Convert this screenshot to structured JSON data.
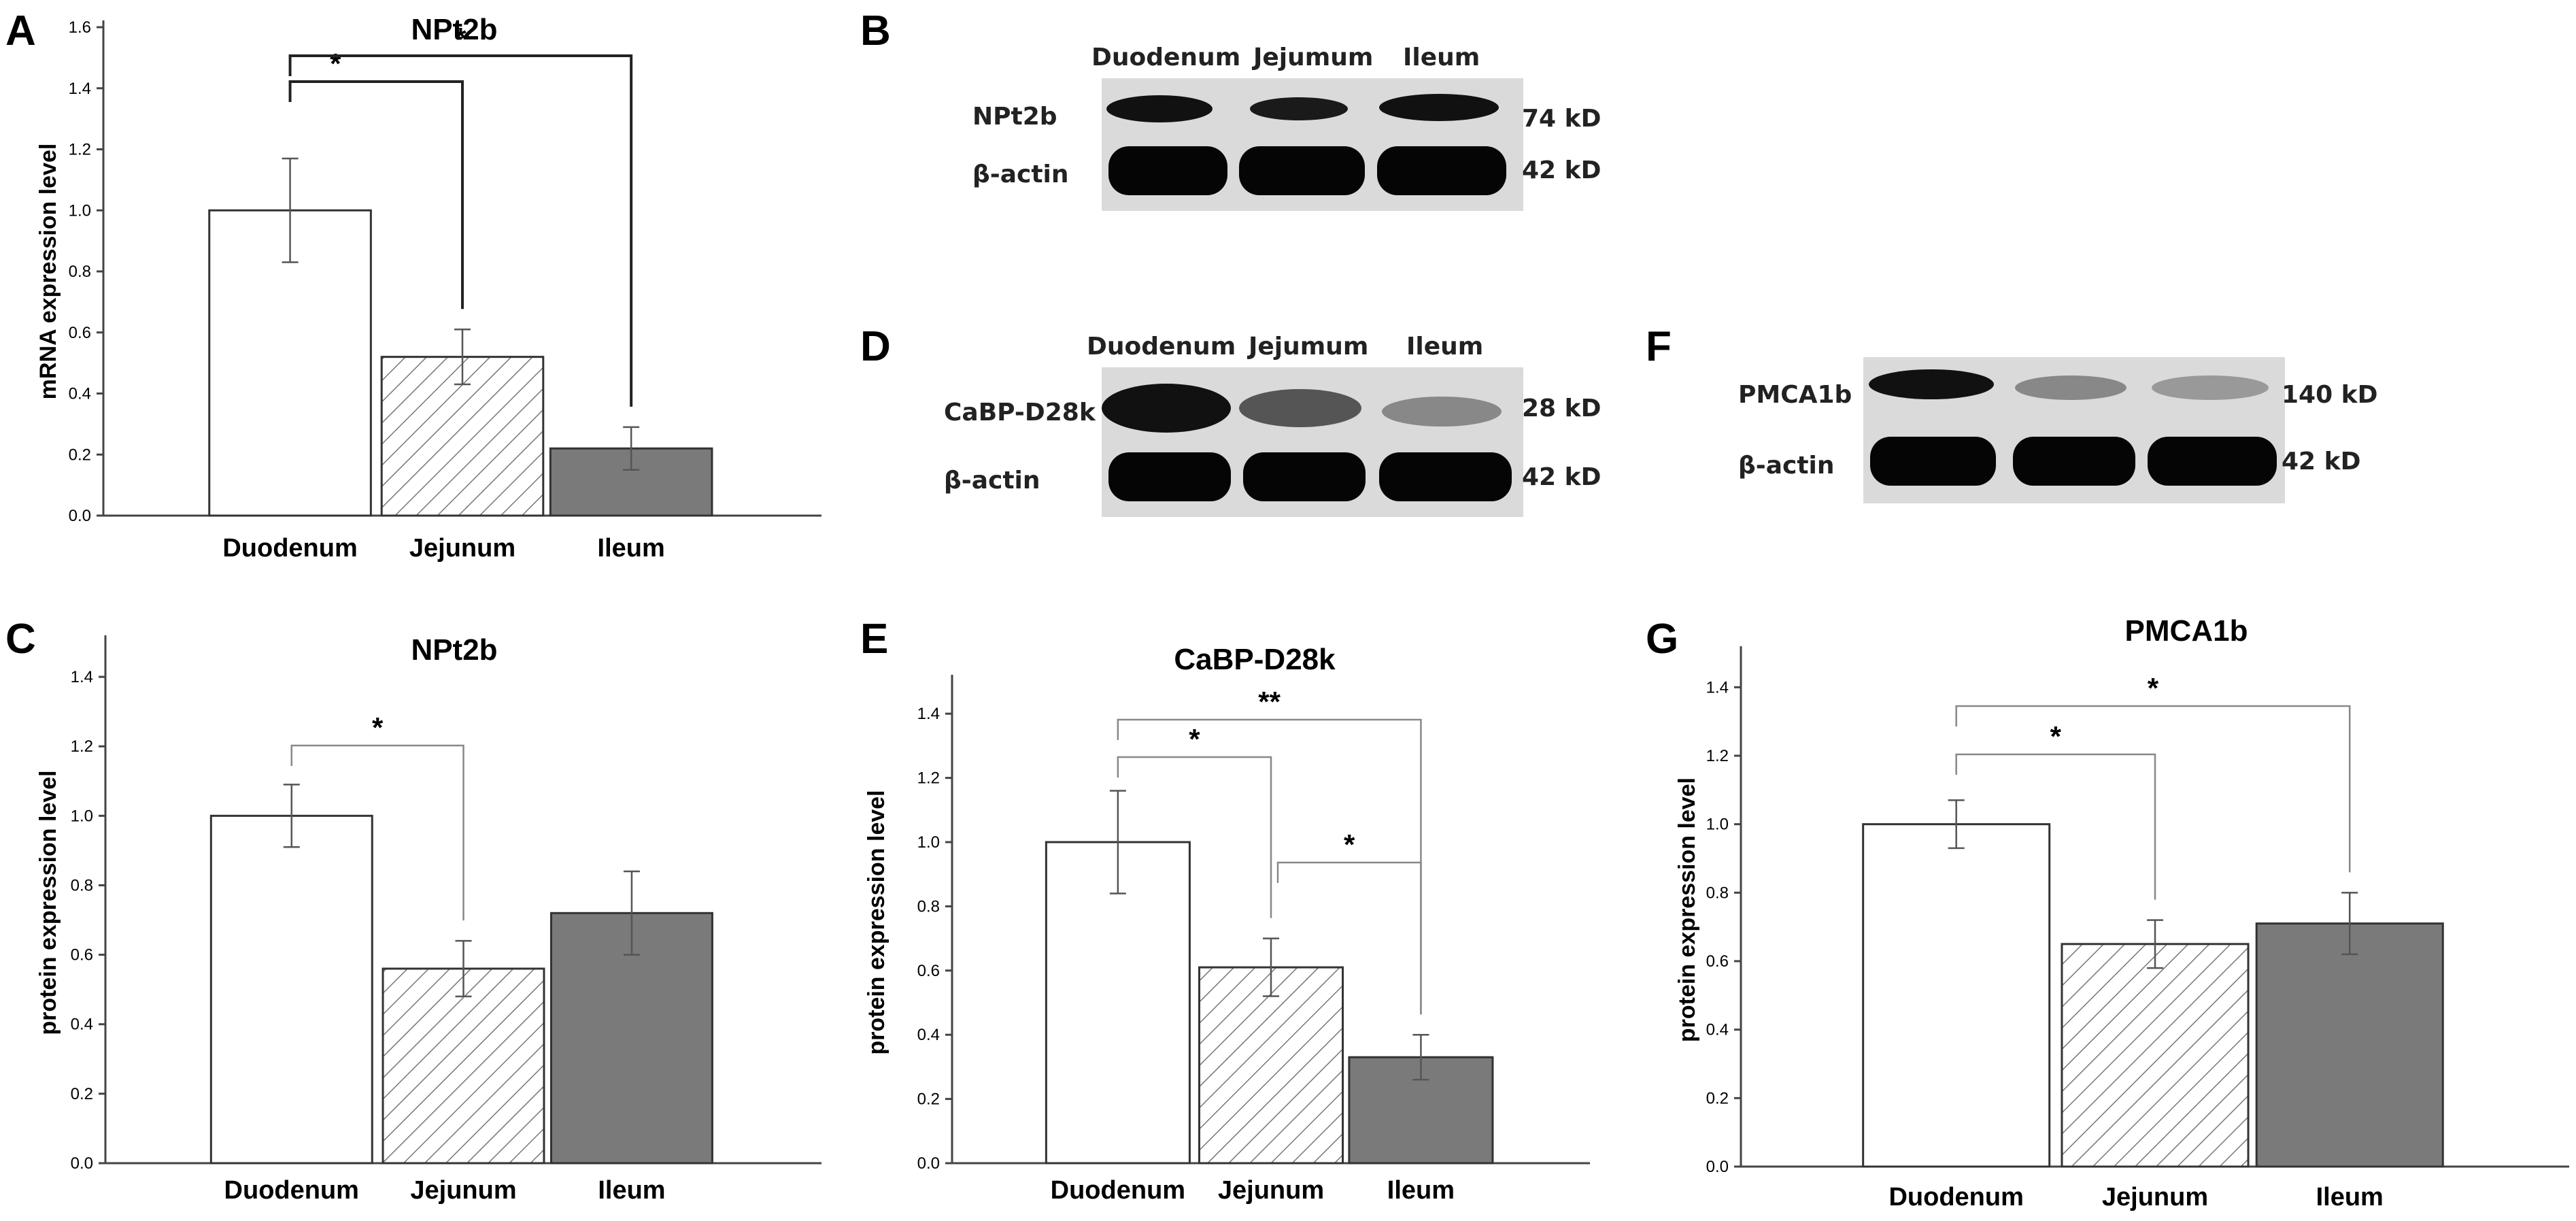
{
  "panels": {
    "A": "A",
    "B": "B",
    "C": "C",
    "D": "D",
    "E": "E",
    "F": "F",
    "G": "G"
  },
  "colors": {
    "duodenum_fill": "#ffffff",
    "jejunum_fill": "hatched",
    "ileum_fill": "#7a7a7a",
    "band": "#0a0a0a",
    "blot_bg": "#d9d9d9"
  },
  "blots": {
    "B": {
      "lanes": [
        "Duodenum",
        "Jejumum",
        "Ileum"
      ],
      "rows": [
        {
          "protein": "NPt2b",
          "size": "74 kD"
        },
        {
          "protein": "β-actin",
          "size": "42 kD"
        }
      ]
    },
    "D": {
      "lanes": [
        "Duodenum",
        "Jejumum",
        "Ileum"
      ],
      "rows": [
        {
          "protein": "CaBP-D28k",
          "size": "28 kD"
        },
        {
          "protein": "β-actin",
          "size": "42 kD"
        }
      ]
    },
    "F": {
      "lanes": [],
      "rows": [
        {
          "protein": "PMCA1b",
          "size": "140 kD"
        },
        {
          "protein": "β-actin",
          "size": "42 kD"
        }
      ]
    }
  },
  "chart_data": [
    {
      "panel": "A",
      "type": "bar",
      "title": "NPt2b",
      "ylabel": "mRNA expression level",
      "xlabel": "",
      "categories": [
        "Duodenum",
        "Jejunum",
        "Ileum"
      ],
      "values": [
        1.0,
        0.52,
        0.22
      ],
      "errors": [
        0.17,
        0.09,
        0.07
      ],
      "ylim": [
        0,
        1.6
      ],
      "yticks": [
        "0.0",
        "0.2",
        "0.4",
        "0.6",
        "0.8",
        "1.0",
        "1.2",
        "1.4",
        "1.6"
      ],
      "significance": [
        {
          "from": 0,
          "to": 1,
          "label": "*"
        },
        {
          "from": 0,
          "to": 2,
          "label": "*"
        }
      ]
    },
    {
      "panel": "C",
      "type": "bar",
      "title": "NPt2b",
      "ylabel": "protein expression level",
      "xlabel": "",
      "categories": [
        "Duodenum",
        "Jejunum",
        "Ileum"
      ],
      "values": [
        1.0,
        0.56,
        0.72
      ],
      "errors": [
        0.09,
        0.08,
        0.12
      ],
      "ylim": [
        0,
        1.5
      ],
      "yticks": [
        "0.0",
        "0.2",
        "0.4",
        "0.6",
        "0.8",
        "1.0",
        "1.2",
        "1.4"
      ],
      "significance": [
        {
          "from": 0,
          "to": 1,
          "label": "*"
        }
      ]
    },
    {
      "panel": "E",
      "type": "bar",
      "title": "CaBP-D28k",
      "ylabel": "protein expression level",
      "xlabel": "",
      "categories": [
        "Duodenum",
        "Jejunum",
        "Ileum"
      ],
      "values": [
        1.0,
        0.61,
        0.33
      ],
      "errors": [
        0.16,
        0.09,
        0.07
      ],
      "ylim": [
        0,
        1.5
      ],
      "yticks": [
        "0.0",
        "0.2",
        "0.4",
        "0.6",
        "0.8",
        "1.0",
        "1.2",
        "1.4"
      ],
      "significance": [
        {
          "from": 0,
          "to": 1,
          "label": "*"
        },
        {
          "from": 0,
          "to": 2,
          "label": "**"
        },
        {
          "from": 1,
          "to": 2,
          "label": "*"
        }
      ]
    },
    {
      "panel": "G",
      "type": "bar",
      "title": "PMCA1b",
      "ylabel": "protein expression level",
      "xlabel": "",
      "categories": [
        "Duodenum",
        "Jejunum",
        "Ileum"
      ],
      "values": [
        1.0,
        0.65,
        0.71
      ],
      "errors": [
        0.07,
        0.07,
        0.09
      ],
      "ylim": [
        0,
        1.5
      ],
      "yticks": [
        "0.0",
        "0.2",
        "0.4",
        "0.6",
        "0.8",
        "1.0",
        "1.2",
        "1.4"
      ],
      "significance": [
        {
          "from": 0,
          "to": 1,
          "label": "*"
        },
        {
          "from": 0,
          "to": 2,
          "label": "*"
        }
      ]
    }
  ]
}
